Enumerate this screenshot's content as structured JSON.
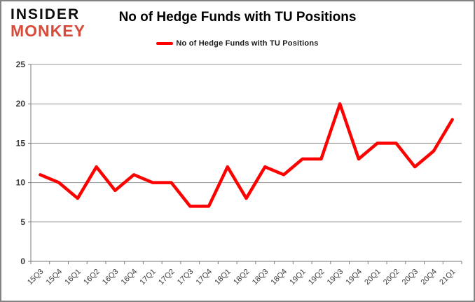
{
  "logo": {
    "line1": "INSIDER",
    "line2": "MONKEY"
  },
  "header": {
    "title": "No of Hedge Funds with TU Positions"
  },
  "legend": {
    "label": "No of Hedge Funds with TU Positions"
  },
  "colors": {
    "series": "#ff0000",
    "logo_accent": "#d74b3a",
    "gridline": "#979797",
    "axis": "#7a7a7a",
    "axis_text": "#3b3b3b",
    "border_glow": "#ff1f0f"
  },
  "chart_data": {
    "type": "line",
    "title": "No of Hedge Funds with TU Positions",
    "categories": [
      "15Q3",
      "15Q4",
      "16Q1",
      "16Q2",
      "16Q3",
      "16Q4",
      "17Q1",
      "17Q2",
      "17Q3",
      "17Q4",
      "18Q1",
      "18Q2",
      "18Q3",
      "18Q4",
      "19Q1",
      "19Q2",
      "19Q3",
      "19Q4",
      "20Q1",
      "20Q2",
      "20Q3",
      "20Q4",
      "21Q1"
    ],
    "series": [
      {
        "name": "No of Hedge Funds with TU Positions",
        "values": [
          11,
          10,
          8,
          12,
          9,
          11,
          10,
          10,
          7,
          7,
          12,
          8,
          12,
          11,
          13,
          13,
          20,
          13,
          15,
          15,
          12,
          14,
          18
        ]
      }
    ],
    "xlabel": "",
    "ylabel": "",
    "ylim": [
      0,
      25
    ],
    "ytick_interval": 5,
    "grid": true,
    "legend_position": "top"
  }
}
